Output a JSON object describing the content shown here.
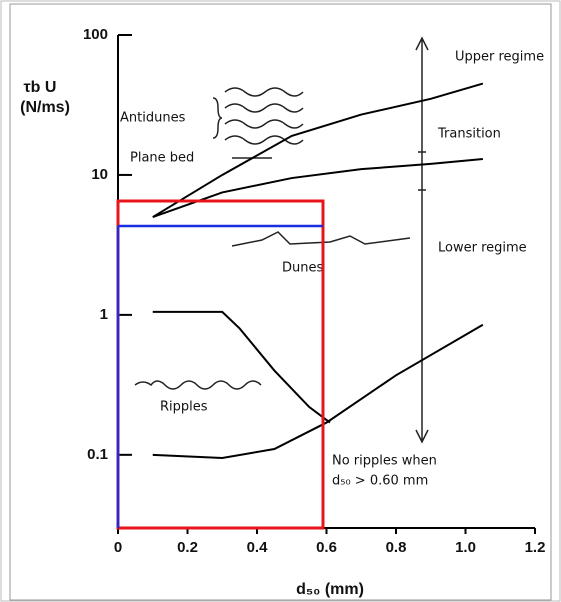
{
  "chart_data": {
    "type": "line",
    "y_label": [
      "τb U",
      "(N/ms)"
    ],
    "x_label": "d₅₀ (mm)",
    "annotations": [
      "Upper regime",
      "Transition",
      "Lower regime",
      "Antidunes",
      "Plane bed",
      "Dunes",
      "Ripples",
      "No ripples when",
      "d₅₀ > 0.60 mm"
    ],
    "xlim": [
      0,
      1.2
    ],
    "xticks": [
      0,
      0.2,
      0.4,
      0.6,
      0.8,
      {
        "value": 1,
        "label": "1.0"
      },
      1.2
    ],
    "ylim": [
      0.03,
      100
    ],
    "yticks": [
      0.1,
      1,
      10,
      100
    ],
    "log_y": true,
    "series": [
      {
        "color": "#000000",
        "x": [
          0.1,
          0.3,
          0.5,
          0.7,
          0.9,
          1.05
        ],
        "values": [
          5,
          10,
          19,
          27,
          35,
          45
        ]
      },
      {
        "color": "#000000",
        "x": [
          0.1,
          0.3,
          0.5,
          0.7,
          0.9,
          1.05
        ],
        "values": [
          5,
          7.5,
          9.5,
          11,
          12,
          13
        ]
      },
      {
        "color": "#000000",
        "x": [
          0.1,
          0.3,
          0.35,
          0.45,
          0.55,
          0.61
        ],
        "values": [
          1.05,
          1.05,
          0.8,
          0.4,
          0.22,
          0.17
        ]
      },
      {
        "color": "#000000",
        "x": [
          0.1,
          0.3,
          0.45,
          0.6,
          0.8,
          1.05
        ],
        "values": [
          0.1,
          0.095,
          0.11,
          0.17,
          0.37,
          0.85
        ]
      }
    ]
  }
}
